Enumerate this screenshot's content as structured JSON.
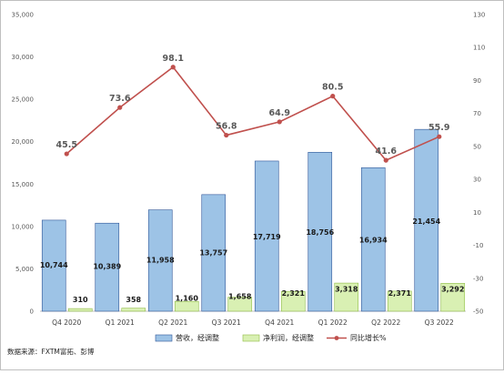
{
  "chart_data": {
    "type": "bar",
    "categories": [
      "Q4 2020",
      "Q1 2021",
      "Q2 2021",
      "Q3 2021",
      "Q4 2021",
      "Q1 2022",
      "Q2 2022",
      "Q3 2022"
    ],
    "series": [
      {
        "name": "营收，经调整",
        "type": "bar",
        "axis": "left",
        "values": [
          10744,
          10389,
          11958,
          13757,
          17719,
          18756,
          16934,
          21454
        ],
        "labels": [
          "10,744",
          "10,389",
          "11,958",
          "13,757",
          "17,719",
          "18,756",
          "16,934",
          "21,454"
        ],
        "color": "#9dc3e6"
      },
      {
        "name": "净利润，经调整",
        "type": "bar",
        "axis": "left",
        "values": [
          310,
          358,
          1160,
          1658,
          2321,
          3318,
          2371,
          3292
        ],
        "labels": [
          "310",
          "358",
          "1,160",
          "1,658",
          "2,321",
          "3,318",
          "2,371",
          "3,292"
        ],
        "color": "#d9f0b3"
      },
      {
        "name": "同比增长%",
        "type": "line",
        "axis": "right",
        "values": [
          45.5,
          73.6,
          98.1,
          56.8,
          64.9,
          80.5,
          41.6,
          55.9
        ],
        "labels": [
          "45.5",
          "73.6",
          "98.1",
          "56.8",
          "64.9",
          "80.5",
          "41.6",
          "55.9"
        ],
        "color": "#c0504d"
      }
    ],
    "y_left": {
      "min": 0,
      "max": 35000,
      "ticks": [
        "0",
        "5,000",
        "10,000",
        "15,000",
        "20,000",
        "25,000",
        "30,000",
        "35,000"
      ]
    },
    "y_right": {
      "min": -50,
      "max": 130,
      "ticks": [
        "-50",
        "-30",
        "-10",
        "10",
        "30",
        "50",
        "70",
        "90",
        "110",
        "130"
      ]
    },
    "grid": false,
    "legend_position": "bottom"
  },
  "source": "数据来源：FXTM富拓、彭博"
}
